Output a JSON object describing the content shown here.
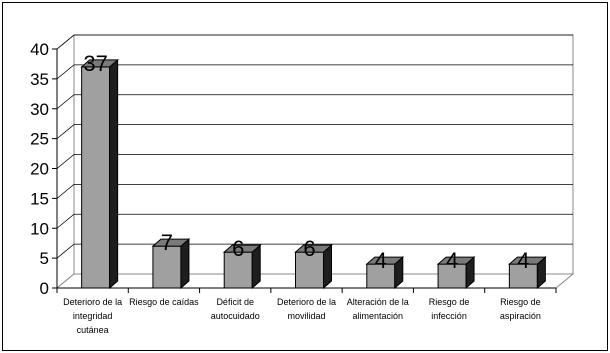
{
  "chart_data": {
    "type": "bar",
    "categories": [
      [
        "Deterioro de la",
        "integridad",
        "cutánea"
      ],
      [
        "Riesgo de caídas"
      ],
      [
        "Déficit de",
        "autocuidado"
      ],
      [
        "Deterioro de la",
        "movilidad"
      ],
      [
        "Alteración de la",
        "alimentación"
      ],
      [
        "Riesgo de",
        "infección"
      ],
      [
        "Riesgo de",
        "aspiración"
      ]
    ],
    "values": [
      37,
      7,
      6,
      6,
      4,
      4,
      4
    ],
    "data_labels": [
      "37",
      "7",
      "6",
      "6",
      "4",
      "4",
      "4"
    ],
    "yticks": [
      "0",
      "5",
      "10",
      "15",
      "20",
      "25",
      "30",
      "35",
      "40"
    ],
    "ylim": [
      0,
      40
    ],
    "title": "",
    "xlabel": "",
    "ylabel": "",
    "grid": true,
    "legend": "none",
    "bar_style": "3d",
    "colors": {
      "bar_front": "#a0a0a0",
      "bar_top": "#7a7a7a",
      "bar_side": "#1e1e1e",
      "back_wall": "#ffffff",
      "outline": "#000000"
    }
  }
}
